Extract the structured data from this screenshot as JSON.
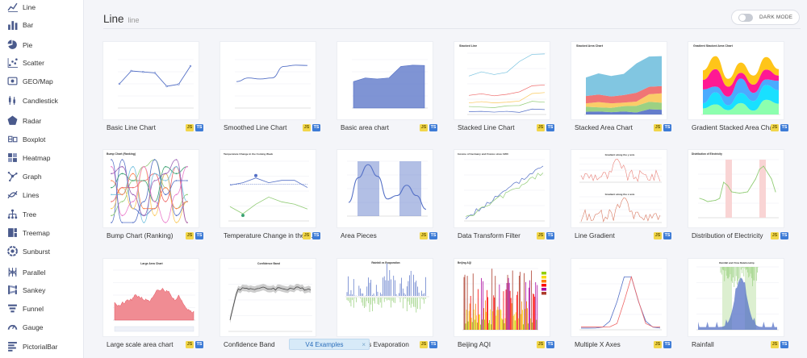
{
  "sidebar": {
    "items": [
      {
        "label": "Line",
        "icon": "line-chart-icon"
      },
      {
        "label": "Bar",
        "icon": "bar-chart-icon"
      },
      {
        "label": "Pie",
        "icon": "pie-chart-icon"
      },
      {
        "label": "Scatter",
        "icon": "scatter-chart-icon"
      },
      {
        "label": "GEO/Map",
        "icon": "map-icon"
      },
      {
        "label": "Candlestick",
        "icon": "candlestick-icon"
      },
      {
        "label": "Radar",
        "icon": "radar-icon"
      },
      {
        "label": "Boxplot",
        "icon": "boxplot-icon"
      },
      {
        "label": "Heatmap",
        "icon": "heatmap-icon"
      },
      {
        "label": "Graph",
        "icon": "graph-icon"
      },
      {
        "label": "Lines",
        "icon": "lines-icon"
      },
      {
        "label": "Tree",
        "icon": "tree-icon"
      },
      {
        "label": "Treemap",
        "icon": "treemap-icon"
      },
      {
        "label": "Sunburst",
        "icon": "sunburst-icon"
      },
      {
        "label": "Parallel",
        "icon": "parallel-icon"
      },
      {
        "label": "Sankey",
        "icon": "sankey-icon"
      },
      {
        "label": "Funnel",
        "icon": "funnel-icon"
      },
      {
        "label": "Gauge",
        "icon": "gauge-icon"
      },
      {
        "label": "PictorialBar",
        "icon": "pictorialbar-icon"
      }
    ]
  },
  "header": {
    "title": "Line",
    "subtitle": "line"
  },
  "dark_mode": {
    "label": "DARK MODE",
    "enabled": false
  },
  "badges": {
    "js": "JS",
    "ts": "TS"
  },
  "examples": [
    {
      "label": "Basic Line Chart",
      "thumb": "basic-line"
    },
    {
      "label": "Smoothed Line Chart",
      "thumb": "smoothed-line"
    },
    {
      "label": "Basic area chart",
      "thumb": "basic-area"
    },
    {
      "label": "Stacked Line Chart",
      "thumb": "stacked-line"
    },
    {
      "label": "Stacked Area Chart",
      "thumb": "stacked-area"
    },
    {
      "label": "Gradient Stacked Area Chart",
      "thumb": "gradient-stacked"
    },
    {
      "label": "Bump Chart (Ranking)",
      "thumb": "bump"
    },
    {
      "label": "Temperature Change in the Coming Week",
      "thumb": "temperature"
    },
    {
      "label": "Area Pieces",
      "thumb": "area-pieces"
    },
    {
      "label": "Data Transform Filter",
      "thumb": "transform-filter"
    },
    {
      "label": "Line Gradient",
      "thumb": "line-gradient"
    },
    {
      "label": "Distribution of Electricity",
      "thumb": "electricity"
    },
    {
      "label": "Large scale area chart",
      "thumb": "large-area"
    },
    {
      "label": "Confidence Band",
      "thumb": "confidence"
    },
    {
      "label": "Rainfall vs Evaporation",
      "thumb": "rainfall-evap"
    },
    {
      "label": "Beijing AQI",
      "thumb": "aqi"
    },
    {
      "label": "Multiple X Axes",
      "thumb": "multi-x"
    },
    {
      "label": "Rainfall",
      "thumb": "rainfall"
    }
  ],
  "thumb_text": {
    "stacked_line_title": "Stacked Line",
    "stacked_area_title": "Stacked Area Chart",
    "gradient_title": "Gradient Stacked Area Chart",
    "bump_title": "Bump Chart (Ranking)",
    "temperature_title": "Temperature Change in the Coming Week",
    "transform_title": "Income of Germany and France since 1950",
    "gradient_y_title": "Gradient along the y axis",
    "gradient_x_title": "Gradient along the x axis",
    "electricity_title": "Distribution of Electricity",
    "large_area_title": "Large Area Chart",
    "confidence_title": "Confidence Band",
    "rainfall_evap_title": "Rainfall vs Evaporation",
    "aqi_title": "Beijing AQI",
    "rainfall_title": "Rainfall and Flow Relationship"
  },
  "popup": {
    "label": "V4 Examples",
    "close": "×"
  },
  "colors": {
    "accent": "#5470c6",
    "green": "#91cc75",
    "yellow": "#fac858",
    "red": "#ee6666",
    "cyan": "#73c0de",
    "teal": "#3ba272",
    "orange": "#fc8452",
    "purple": "#9a60b4"
  }
}
